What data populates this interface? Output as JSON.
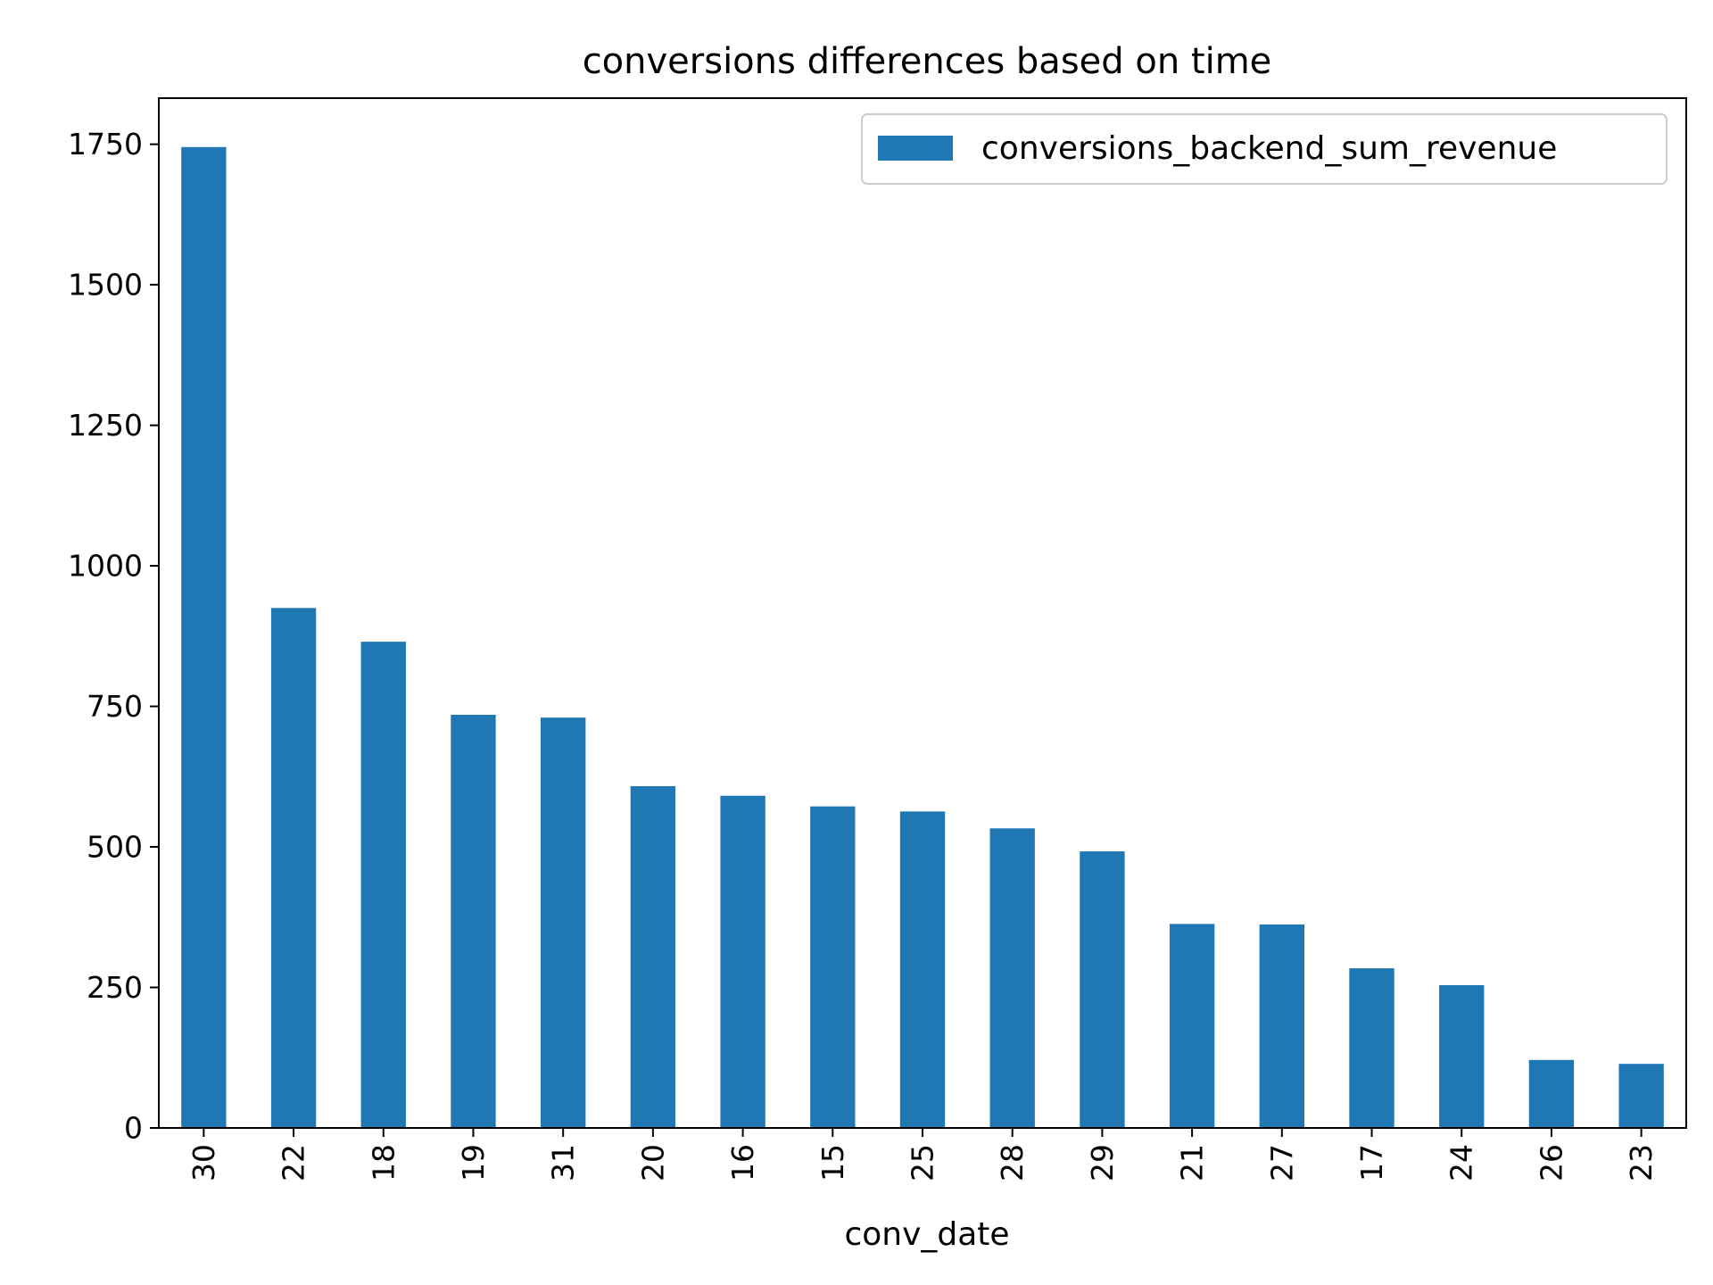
{
  "chart_data": {
    "type": "bar",
    "title": "conversions differences based on time",
    "xlabel": "conv_date",
    "ylabel": "",
    "categories": [
      "30",
      "22",
      "18",
      "19",
      "31",
      "20",
      "16",
      "15",
      "25",
      "28",
      "29",
      "21",
      "27",
      "17",
      "24",
      "26",
      "23"
    ],
    "series": [
      {
        "name": "conversions_backend_sum_revenue",
        "values": [
          1745,
          925,
          865,
          735,
          730,
          608,
          591,
          572,
          563,
          533,
          492,
          363,
          362,
          284,
          254,
          121,
          114
        ],
        "color": "#1f77b4"
      }
    ],
    "ylim": [
      0,
      1832
    ],
    "yticks": [
      0,
      250,
      500,
      750,
      1000,
      1250,
      1500,
      1750
    ],
    "grid": false,
    "legend_position": "top-right"
  }
}
